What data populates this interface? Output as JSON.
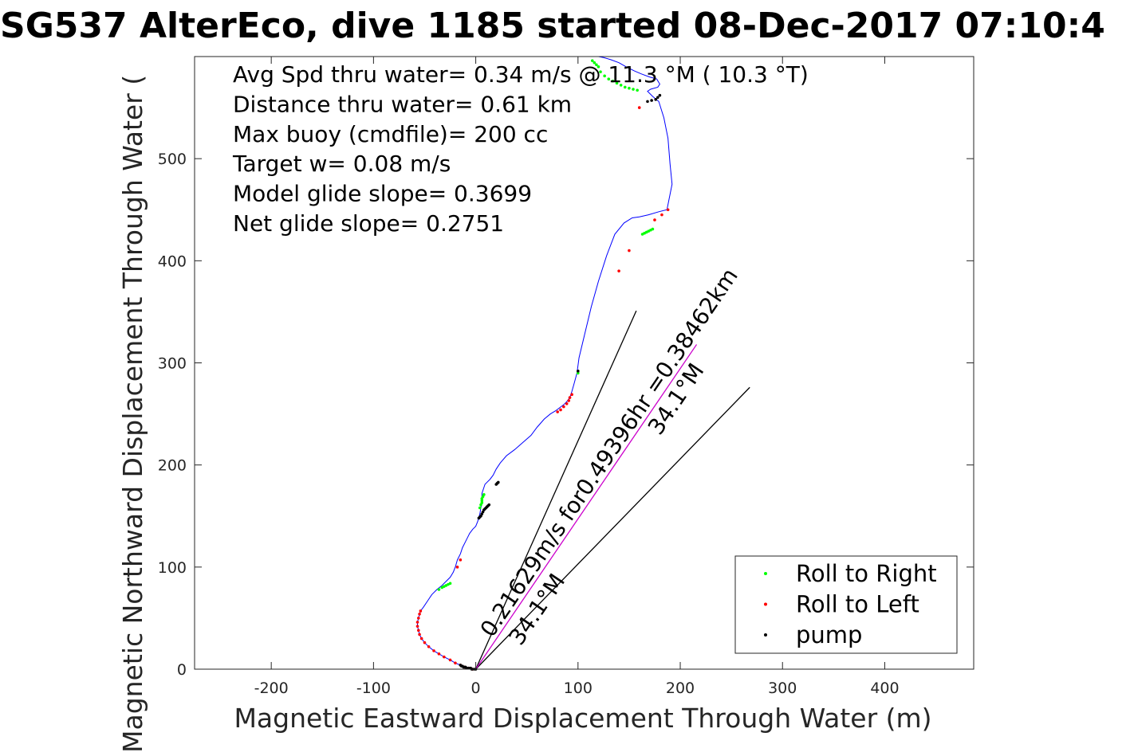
{
  "chart_data": {
    "type": "scatter",
    "title": "SG537 AlterEco, dive 1185 started 08-Dec-2017 07:10:4",
    "xlabel": "Magnetic Eastward Displacement Through Water (m)",
    "ylabel": "Magnetic Northward Displacement Through Water (",
    "xlim": [
      -275,
      487
    ],
    "ylim": [
      0,
      600
    ],
    "x_ticks": [
      -200,
      -100,
      0,
      100,
      200,
      300,
      400
    ],
    "x_tick_labels": [
      "-200",
      "-100",
      "0",
      "100",
      "200",
      "300",
      "400"
    ],
    "y_ticks": [
      0,
      100,
      200,
      300,
      400,
      500
    ],
    "y_tick_labels": [
      "0",
      "100",
      "200",
      "300",
      "400",
      "500"
    ],
    "grid": true,
    "legend_position": "bottom-right",
    "annotations": [
      "Avg Spd thru water=  0.34 m/s @  11.3 °M ( 10.3 °T)",
      "Distance thru water=  0.61 km",
      "Max buoy (cmdfile)= 200 cc",
      "Target w= 0.08 m/s",
      "Model glide slope= 0.3699",
      "Net glide slope= 0.2751"
    ],
    "rotated_labels": [
      {
        "text": "0.21629m/s for0.49396hr =0.38462km",
        "x": 16,
        "y": 30,
        "angle_deg": 55.9
      },
      {
        "text": "34.1°M",
        "x": 44,
        "y": 22,
        "angle_deg": 55.9
      },
      {
        "text": "34.1°M",
        "x": 180,
        "y": 228,
        "angle_deg": 55.9
      }
    ],
    "lines": [
      {
        "name": "wedge-upper",
        "color": "#000000",
        "x": [
          0,
          157
        ],
        "y": [
          0,
          351
        ]
      },
      {
        "name": "wedge-lower",
        "color": "#000000",
        "x": [
          0,
          268
        ],
        "y": [
          0,
          276
        ]
      },
      {
        "name": "current",
        "color": "#cc00cc",
        "x": [
          0,
          216
        ],
        "y": [
          0,
          318
        ]
      }
    ],
    "track": {
      "color": "#0000ff",
      "x": [
        0,
        -3,
        -7,
        -11,
        -15,
        -20,
        -25,
        -31,
        -36,
        -41,
        -46,
        -50,
        -53,
        -55,
        -56,
        -57,
        -57,
        -56,
        -55,
        -54,
        -51,
        -47,
        -43,
        -38,
        -33,
        -29,
        -25,
        -22,
        -20,
        -18,
        -15,
        -13,
        -10,
        -8,
        -6,
        -3,
        0,
        2,
        4,
        5,
        6,
        6,
        6,
        7,
        8,
        9,
        11,
        14,
        17,
        20,
        24,
        30,
        38,
        46,
        54,
        60,
        67,
        73,
        78,
        82,
        86,
        89,
        92,
        94,
        96,
        99,
        101,
        107,
        113,
        120,
        128,
        136,
        145,
        153,
        160,
        169,
        179,
        187,
        192,
        190,
        188,
        184,
        179,
        173,
        168,
        171,
        178,
        180,
        177,
        170,
        162,
        155,
        147,
        140,
        132,
        125,
        120
      ],
      "y": [
        0,
        0,
        1,
        2,
        4,
        6,
        9,
        12,
        15,
        18,
        22,
        26,
        30,
        34,
        38,
        42,
        46,
        50,
        54,
        57,
        61,
        67,
        73,
        78,
        82,
        86,
        90,
        95,
        100,
        107,
        113,
        119,
        125,
        129,
        133,
        137,
        140,
        145,
        152,
        158,
        163,
        168,
        172,
        175,
        178,
        181,
        183,
        186,
        190,
        196,
        202,
        209,
        215,
        222,
        229,
        237,
        245,
        250,
        253,
        256,
        259,
        262,
        266,
        272,
        279,
        290,
        305,
        330,
        355,
        380,
        405,
        426,
        437,
        442,
        443,
        445,
        448,
        450,
        475,
        495,
        520,
        540,
        556,
        561,
        566,
        568,
        570,
        573,
        578,
        580,
        583,
        586,
        590,
        594,
        597,
        599,
        600
      ]
    },
    "series": [
      {
        "name": "Roll to Right",
        "color": "#00ff00",
        "x": [
          -36,
          -33,
          -31,
          -29,
          -27,
          -25,
          4,
          5,
          6,
          6,
          6,
          7,
          8,
          100,
          163,
          165,
          167,
          169,
          171,
          173,
          158,
          154,
          150,
          146,
          142,
          138,
          134,
          130,
          126,
          122,
          120,
          118,
          116,
          114
        ],
        "y": [
          78,
          80,
          81,
          82,
          83,
          84,
          158,
          161,
          163,
          165,
          167,
          169,
          171,
          290,
          426,
          427,
          428,
          429,
          430,
          431,
          567,
          568,
          569,
          570,
          572,
          574,
          576,
          578,
          581,
          585,
          590,
          592,
          594,
          596
        ]
      },
      {
        "name": "Roll to Left",
        "color": "#ff0000",
        "x": [
          -3,
          -7,
          -11,
          -15,
          -20,
          -25,
          -31,
          -36,
          -41,
          -46,
          -50,
          -53,
          -55,
          -56,
          -57,
          -57,
          -56,
          -55,
          -54,
          -18,
          -15,
          80,
          83,
          86,
          89,
          91,
          92,
          94,
          140,
          150,
          175,
          182,
          188,
          160
        ],
        "y": [
          0,
          1,
          2,
          4,
          6,
          9,
          12,
          15,
          18,
          22,
          26,
          30,
          34,
          38,
          42,
          46,
          50,
          54,
          57,
          100,
          107,
          252,
          254,
          257,
          260,
          263,
          266,
          269,
          390,
          410,
          440,
          445,
          450,
          550
        ]
      },
      {
        "name": "pump",
        "color": "#000000",
        "x": [
          0,
          -1,
          -3,
          -4,
          -5,
          -7,
          -9,
          -10,
          -11,
          -12,
          -13,
          -14,
          -15,
          3,
          4,
          5,
          6,
          7,
          8,
          9,
          10,
          11,
          12,
          13,
          20,
          21,
          22,
          168,
          172,
          176,
          178,
          180,
          100
        ],
        "y": [
          0,
          0,
          0,
          0,
          1,
          1,
          1,
          2,
          2,
          2,
          3,
          3,
          4,
          148,
          149,
          150,
          152,
          154,
          156,
          157,
          158,
          159,
          160,
          161,
          181,
          182,
          183,
          556,
          557,
          558,
          560,
          562,
          292
        ]
      }
    ],
    "legend": [
      {
        "label": "Roll to Right",
        "color": "#00ff00"
      },
      {
        "label": "Roll to Left",
        "color": "#ff0000"
      },
      {
        "label": "pump",
        "color": "#000000"
      }
    ]
  }
}
